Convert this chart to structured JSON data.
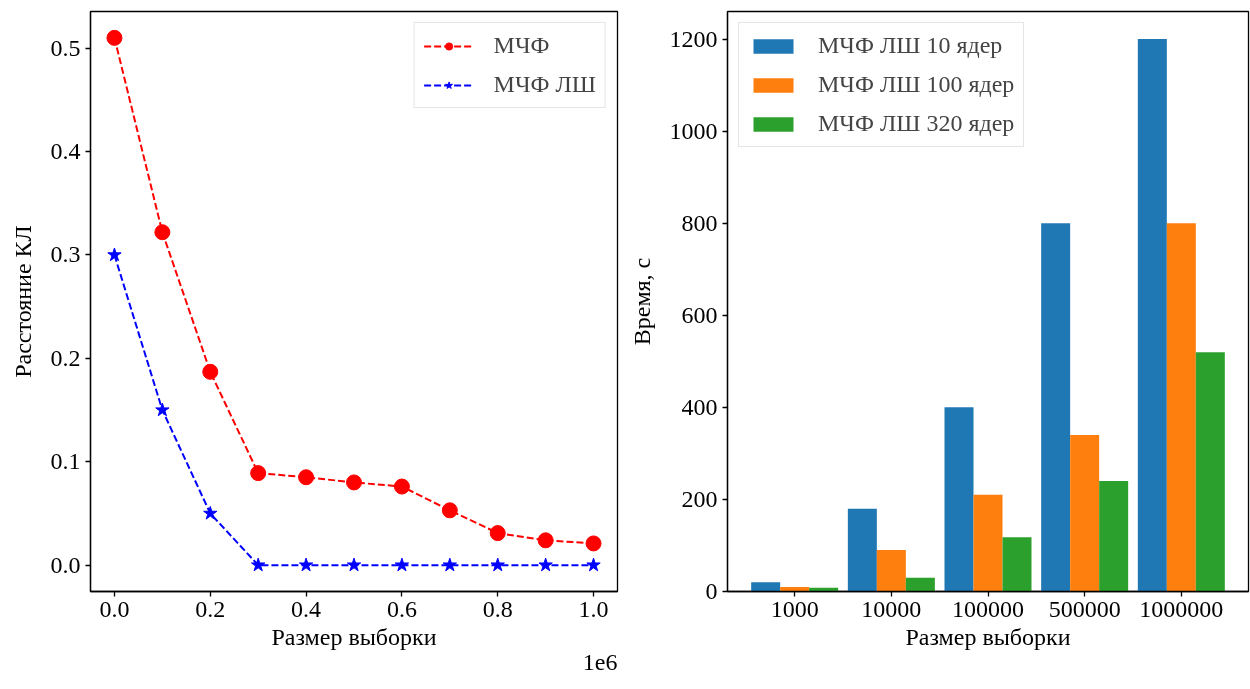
{
  "chart_data": [
    {
      "type": "line",
      "xlabel": "Размер выборки",
      "ylabel": "Расстояние КЛ",
      "x": [
        0,
        0.1,
        0.2,
        0.3,
        0.4,
        0.5,
        0.6,
        0.7,
        0.8,
        0.9,
        1.0
      ],
      "xlim": [
        -0.05,
        1.05
      ],
      "xticks": [
        {
          "value": 0,
          "label": "0.0"
        },
        0.2,
        0.4,
        0.6,
        0.8,
        {
          "value": 1,
          "label": "1.0"
        }
      ],
      "ylim": [
        -0.0255,
        0.5355
      ],
      "yticks": [
        {
          "value": 0,
          "label": "0.0"
        },
        0.1,
        0.2,
        0.3,
        0.4,
        0.5
      ],
      "series": [
        {
          "name": "МЧФ",
          "color": "#ff0000",
          "marker": "circle",
          "values": [
            0.51,
            0.322,
            0.187,
            0.089,
            0.085,
            0.08,
            0.076,
            0.053,
            0.031,
            0.024,
            0.021
          ]
        },
        {
          "name": "МЧФ ЛШ",
          "color": "#0000ff",
          "marker": "star",
          "values": [
            0.3,
            0.15,
            0.05,
            0.0,
            0.0,
            0.0,
            0.0,
            0.0,
            0.0,
            0.0,
            0.0
          ]
        }
      ],
      "line_style": "dashed",
      "grid": false,
      "legend": "top right",
      "annotations": [
        "1e6"
      ]
    },
    {
      "type": "bar",
      "xlabel": "Размер выборки",
      "ylabel": "Время, с",
      "categories": [
        "1000",
        "10000",
        "100000",
        "500000",
        "1000000"
      ],
      "ylim": [
        0,
        1260
      ],
      "yticks": [
        0,
        200,
        400,
        600,
        800,
        1000,
        1200
      ],
      "series": [
        {
          "name": "МЧФ ЛШ 10 ядер",
          "color": "#1f77b4",
          "values": [
            20,
            180,
            400,
            800,
            1200
          ]
        },
        {
          "name": "МЧФ ЛШ 100 ядер",
          "color": "#ff7f0e",
          "values": [
            10,
            90,
            210,
            340,
            800
          ]
        },
        {
          "name": "МЧФ ЛШ 320 ядер",
          "color": "#2ca02c",
          "values": [
            8,
            30,
            118,
            240,
            520
          ]
        }
      ],
      "grid": false,
      "legend": "top left"
    }
  ]
}
